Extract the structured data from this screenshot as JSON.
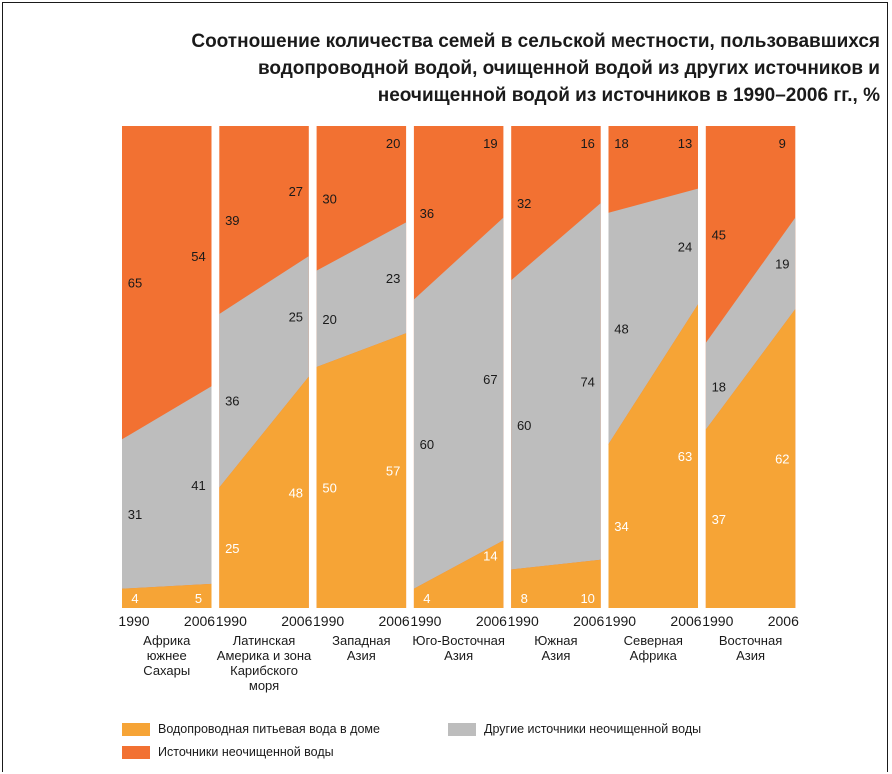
{
  "title_lines": [
    "Соотношение количества семей в сельской местности, пользовавшихся",
    "водопроводной водой,  очищенной водой из других источников и",
    "неочищенной водой из источников в 1990–2006 гг., %"
  ],
  "colors": {
    "piped": "#F6A436",
    "other": "#BDBDBD",
    "unimproved": "#F27132"
  },
  "chart_data": {
    "type": "area",
    "years": [
      "1990",
      "2006"
    ],
    "ylim": [
      0,
      100
    ],
    "legend": [
      {
        "key": "piped",
        "label": "Водопроводная питьевая вода в доме"
      },
      {
        "key": "other",
        "label": "Другие источники неочищенной воды"
      },
      {
        "key": "unimproved",
        "label": "Источники неочищенной воды"
      }
    ],
    "regions": [
      {
        "name_lines": [
          "Африка",
          "южнее",
          "Сахары"
        ],
        "piped": [
          4,
          5
        ],
        "other": [
          31,
          41
        ],
        "unimproved": [
          65,
          54
        ]
      },
      {
        "name_lines": [
          "Латинская",
          "Америка и зона",
          "Карибского",
          "моря"
        ],
        "piped": [
          25,
          48
        ],
        "other": [
          36,
          25
        ],
        "unimproved": [
          39,
          27
        ]
      },
      {
        "name_lines": [
          "Западная",
          "Азия"
        ],
        "piped": [
          50,
          57
        ],
        "other": [
          20,
          23
        ],
        "unimproved": [
          30,
          20
        ]
      },
      {
        "name_lines": [
          "Юго-Восточная",
          "Азия"
        ],
        "piped": [
          4,
          14
        ],
        "other": [
          60,
          67
        ],
        "unimproved": [
          36,
          19
        ]
      },
      {
        "name_lines": [
          "Южная",
          "Азия"
        ],
        "piped": [
          8,
          10
        ],
        "other": [
          60,
          74
        ],
        "unimproved": [
          32,
          16
        ]
      },
      {
        "name_lines": [
          "Северная",
          "Африка"
        ],
        "piped": [
          34,
          63
        ],
        "other": [
          48,
          24
        ],
        "unimproved": [
          18,
          13
        ]
      },
      {
        "name_lines": [
          "Восточная",
          "Азия"
        ],
        "piped": [
          37,
          62
        ],
        "other": [
          18,
          19
        ],
        "unimproved": [
          45,
          9
        ]
      }
    ]
  }
}
